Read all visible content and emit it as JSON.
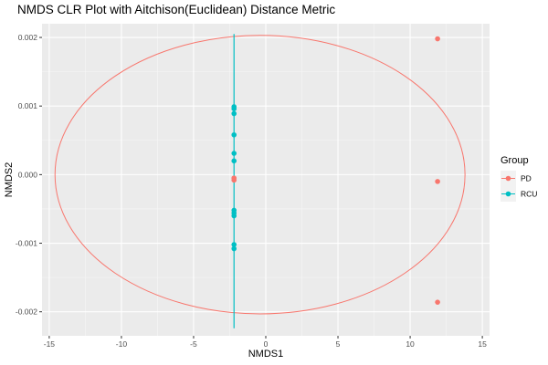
{
  "chart_data": {
    "type": "scatter",
    "title": "NMDS CLR Plot with Aitchison(Euclidean) Distance Metric",
    "xlabel": "NMDS1",
    "ylabel": "NMDS2",
    "xlim": [
      -15.5,
      15.5
    ],
    "ylim": [
      -0.00235,
      0.0022
    ],
    "x_ticks": [
      -15,
      -10,
      -5,
      0,
      5,
      10,
      15
    ],
    "x_tick_labels": [
      "-15",
      "-10",
      "-5",
      "0",
      "5",
      "10",
      "15"
    ],
    "y_ticks": [
      -0.002,
      -0.001,
      0.0,
      0.001,
      0.002
    ],
    "y_tick_labels": [
      "-0.002",
      "-0.001",
      "0.000",
      "0.001",
      "0.002"
    ],
    "grid": true,
    "legend": {
      "title": "Group",
      "placement": "right",
      "entries": [
        "PD",
        "RCU"
      ]
    },
    "series": [
      {
        "name": "PD",
        "color": "#F8766D",
        "points": [
          {
            "x": 11.9,
            "y": 0.00198
          },
          {
            "x": 11.9,
            "y": -0.0001
          },
          {
            "x": 11.9,
            "y": -0.00186
          },
          {
            "x": -2.2,
            "y": -5e-05
          },
          {
            "x": -2.2,
            "y": -8e-05
          }
        ],
        "ellipse": {
          "cx": -0.4,
          "cy": 0.0,
          "rx": 14.2,
          "ry": 0.00203
        }
      },
      {
        "name": "RCU",
        "color": "#00BFC4",
        "points": [
          {
            "x": -2.2,
            "y": 0.00099
          },
          {
            "x": -2.2,
            "y": 0.00096
          },
          {
            "x": -2.2,
            "y": 0.00089
          },
          {
            "x": -2.2,
            "y": 0.00058
          },
          {
            "x": -2.2,
            "y": 0.00031
          },
          {
            "x": -2.2,
            "y": 0.0002
          },
          {
            "x": -2.2,
            "y": -0.00052
          },
          {
            "x": -2.2,
            "y": -0.00056
          },
          {
            "x": -2.2,
            "y": -0.0006
          },
          {
            "x": -2.2,
            "y": -0.00102
          },
          {
            "x": -2.2,
            "y": -0.00108
          }
        ],
        "segment": {
          "x": -2.2,
          "y0": -0.00224,
          "y1": 0.00205
        }
      }
    ]
  }
}
